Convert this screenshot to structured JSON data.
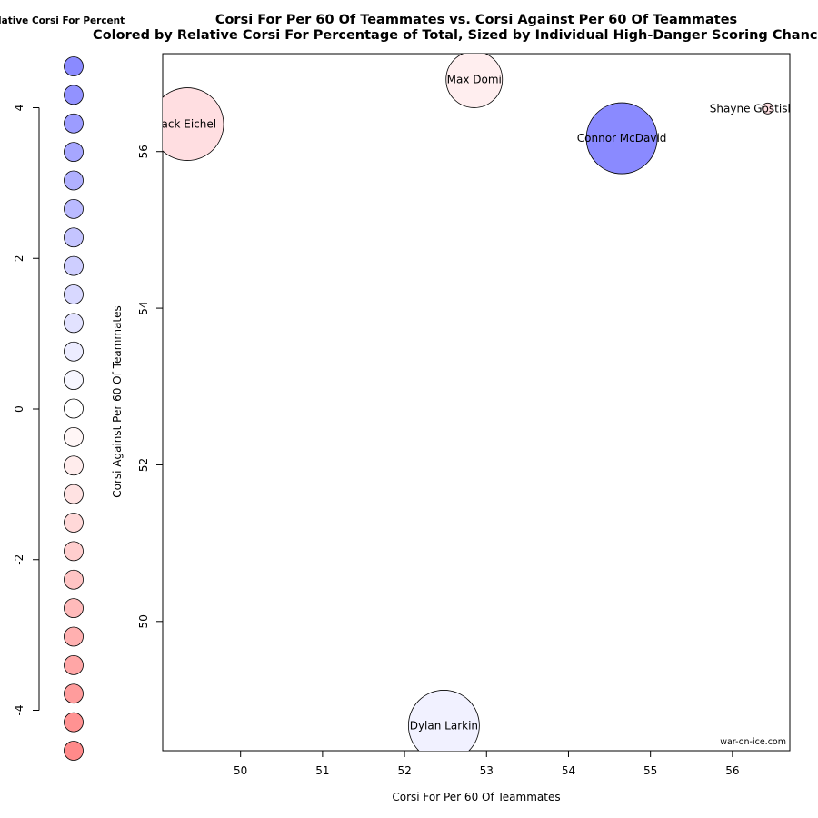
{
  "chart_data": {
    "type": "scatter",
    "title": "Corsi For Per 60 Of Teammates vs. Corsi Against Per 60 Of Teammates",
    "subtitle": "Colored by Relative Corsi For Percentage of Total, Sized by Individual High-Danger Scoring Chances",
    "xlabel": "Corsi For Per 60 Of Teammates",
    "ylabel": "Corsi Against Per 60 Of Teammates",
    "xlim": [
      49.05,
      56.7
    ],
    "ylim": [
      48.35,
      57.25
    ],
    "xticks": [
      "50",
      "51",
      "52",
      "53",
      "54",
      "55",
      "56"
    ],
    "yticks": [
      "50",
      "52",
      "54",
      "56"
    ],
    "grid": false,
    "points": [
      {
        "name": "Jack Eichel",
        "x": 49.35,
        "y": 56.35,
        "color": "#FFDEE1",
        "size": 40
      },
      {
        "name": "Max Domi",
        "x": 52.85,
        "y": 56.92,
        "color": "#FFEEEF",
        "size": 31
      },
      {
        "name": "Connor McDavid",
        "x": 54.65,
        "y": 56.17,
        "color": "#8A8AFF",
        "size": 39
      },
      {
        "name": "Shayne Gostisbehere",
        "x": 56.43,
        "y": 56.55,
        "color": "#FFE0E3",
        "size": 6
      },
      {
        "name": "Dylan Larkin",
        "x": 52.48,
        "y": 48.67,
        "color": "#F1F1FF",
        "size": 39
      }
    ],
    "legend": {
      "title": "Relative Corsi For Percent",
      "ticks": [
        "4",
        "2",
        "0",
        "-2",
        "-4"
      ],
      "tick_values": [
        4,
        2,
        0,
        -2,
        -4
      ],
      "range": [
        -4.5,
        4.5
      ],
      "colors": [
        "#8A8AFF",
        "#9292FF",
        "#9C9CFF",
        "#A6A6FF",
        "#B0B0FF",
        "#BABAFF",
        "#C4C4FF",
        "#CECEFF",
        "#D8D8FF",
        "#E2E2FF",
        "#ECECFF",
        "#F6F6FF",
        "#FFFFFF",
        "#FFF6F6",
        "#FFECEC",
        "#FFE2E2",
        "#FFD8D8",
        "#FFCECE",
        "#FFC4C4",
        "#FFBABA",
        "#FFB0B0",
        "#FFA6A6",
        "#FF9C9C",
        "#FF9292",
        "#FF8A8A"
      ]
    },
    "credit": "war-on-ice.com"
  }
}
